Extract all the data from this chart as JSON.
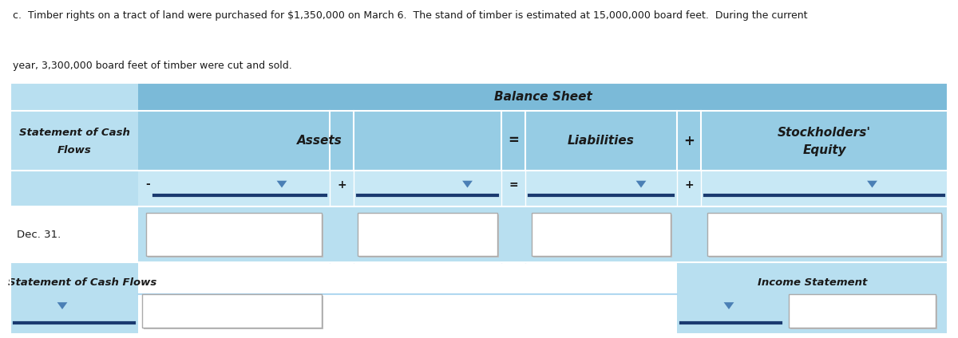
{
  "desc_line1": "c.  Timber rights on a tract of land were purchased for $1,350,000 on March 6.  The stand of timber is estimated at 15,000,000 board feet.  During the current",
  "desc_line2": "year, 3,300,000 board feet of timber were cut and sold.",
  "bg_color": "#ffffff",
  "table_bg_light": "#b8dff0",
  "table_bg_medium": "#96cce4",
  "table_bg_dark": "#7bbad8",
  "underline_color": "#1a3a70",
  "triangle_color": "#4a7fb5",
  "text_color": "#1a1a1a",
  "balance_sheet_title": "Balance Sheet",
  "assets_label": "Assets",
  "liabilities_label": "Liabilities",
  "equity_label1": "Stockholders'",
  "equity_label2": "Equity",
  "scf_label1": "Statement of Cash",
  "scf_label2": "Flows",
  "dec31_label": "Dec. 31.",
  "bottom_left_label": "Statement of Cash Flows",
  "bottom_right_label": "Income Statement",
  "fig_width": 12.0,
  "fig_height": 4.24,
  "dpi": 100
}
